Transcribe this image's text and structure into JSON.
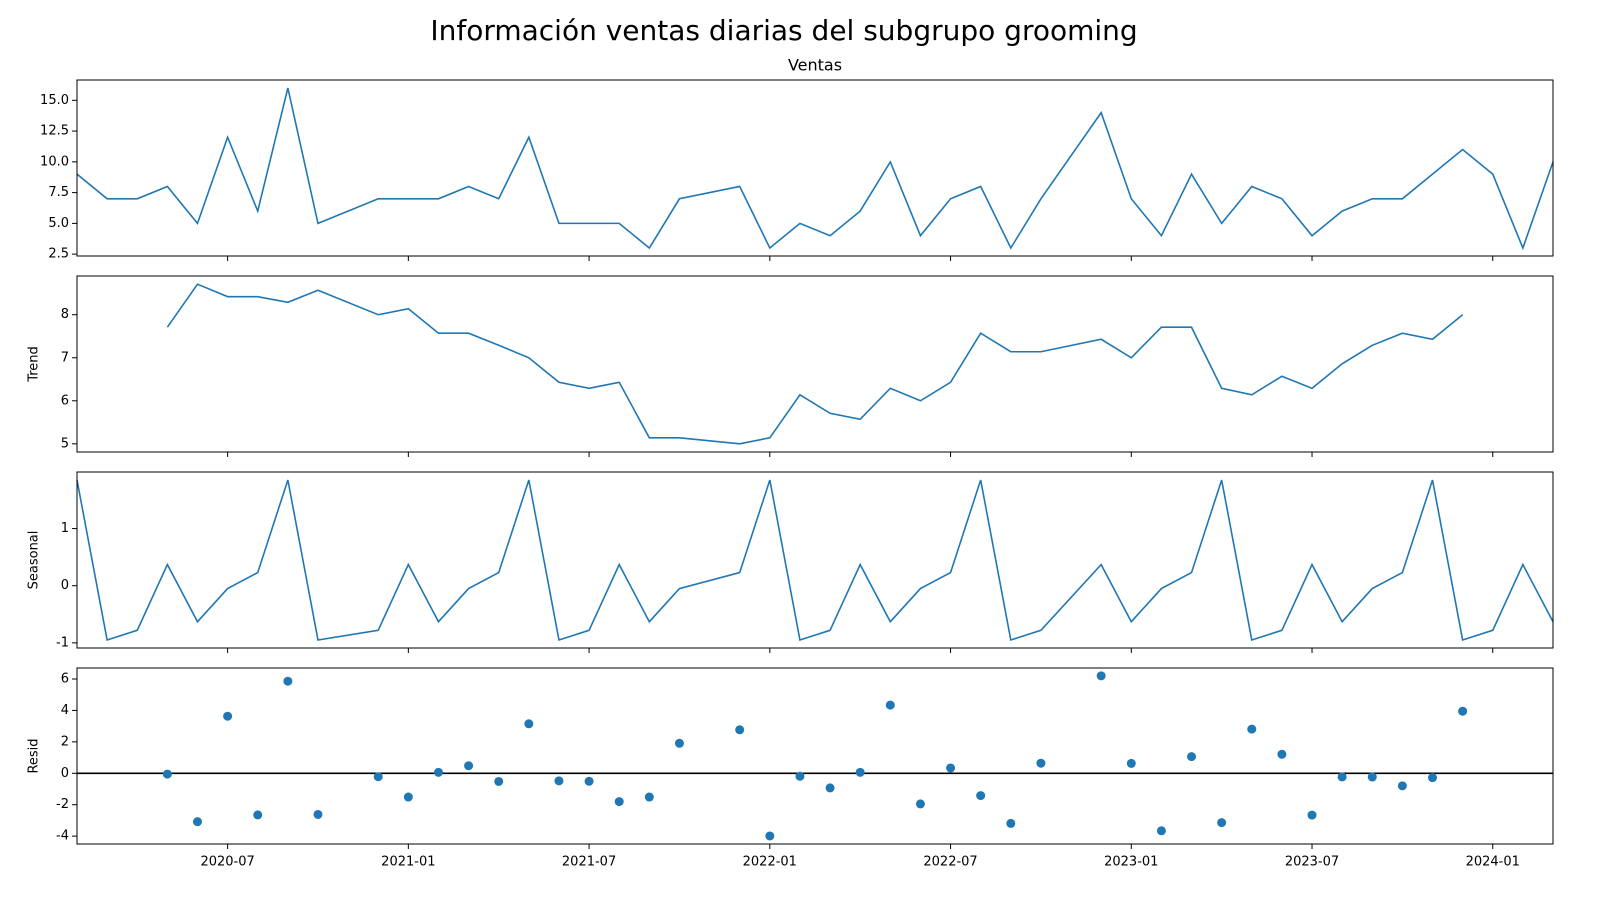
{
  "title": "Información ventas diarias del subgrupo grooming",
  "chart_data": [
    {
      "type": "line",
      "title": "Ventas",
      "color": "#1f77b4",
      "x": [
        "2020-02",
        "2020-03",
        "2020-04",
        "2020-05",
        "2020-06",
        "2020-07",
        "2020-08",
        "2020-09",
        "2020-10",
        "2020-12",
        "2021-01",
        "2021-02",
        "2021-03",
        "2021-04",
        "2021-05",
        "2021-06",
        "2021-07",
        "2021-08",
        "2021-09",
        "2021-10",
        "2021-12",
        "2022-01",
        "2022-02",
        "2022-03",
        "2022-04",
        "2022-05",
        "2022-06",
        "2022-07",
        "2022-08",
        "2022-09",
        "2022-10",
        "2022-12",
        "2023-01",
        "2023-02",
        "2023-03",
        "2023-04",
        "2023-05",
        "2023-06",
        "2023-07",
        "2023-08",
        "2023-09",
        "2023-10",
        "2023-11",
        "2023-12",
        "2024-01",
        "2024-02",
        "2024-03"
      ],
      "values": [
        9,
        7,
        7,
        8,
        5,
        12,
        6,
        16,
        5,
        7,
        7,
        7,
        8,
        7,
        12,
        5,
        5,
        5,
        3,
        7,
        8,
        3,
        5,
        4,
        6,
        10,
        4,
        7,
        8,
        3,
        7,
        14,
        7,
        4,
        9,
        5,
        8,
        7,
        4,
        6,
        7,
        7,
        9,
        11,
        9,
        3,
        10
      ],
      "xlim": [
        "2020-02",
        "2024-03"
      ],
      "xticks": [
        "2020-07",
        "2021-01",
        "2021-07",
        "2022-01",
        "2022-07",
        "2023-01",
        "2023-07",
        "2024-01"
      ],
      "ylim": [
        2.35,
        16.65
      ],
      "yticks": [
        2.5,
        {
          "value": 5,
          "label": "5.0"
        },
        7.5,
        {
          "value": 10,
          "label": "10.0"
        },
        12.5,
        {
          "value": 15,
          "label": "15.0"
        }
      ]
    },
    {
      "type": "line",
      "ylabel": "Trend",
      "color": "#1f77b4",
      "x": [
        "2020-02",
        "2020-03",
        "2020-04",
        "2020-05",
        "2020-06",
        "2020-07",
        "2020-08",
        "2020-09",
        "2020-10",
        "2020-12",
        "2021-01",
        "2021-02",
        "2021-03",
        "2021-04",
        "2021-05",
        "2021-06",
        "2021-07",
        "2021-08",
        "2021-09",
        "2021-10",
        "2021-12",
        "2022-01",
        "2022-02",
        "2022-03",
        "2022-04",
        "2022-05",
        "2022-06",
        "2022-07",
        "2022-08",
        "2022-09",
        "2022-10",
        "2022-12",
        "2023-01",
        "2023-02",
        "2023-03",
        "2023-04",
        "2023-05",
        "2023-06",
        "2023-07",
        "2023-08",
        "2023-09",
        "2023-10",
        "2023-11",
        "2023-12",
        "2024-01",
        "2024-02",
        "2024-03"
      ],
      "values": [
        null,
        null,
        null,
        7.71,
        8.71,
        8.42,
        8.42,
        8.29,
        8.57,
        8.0,
        8.14,
        7.57,
        7.57,
        7.29,
        7.0,
        6.43,
        6.29,
        6.43,
        5.14,
        5.14,
        5.0,
        5.14,
        6.14,
        5.71,
        5.57,
        6.29,
        6.0,
        6.43,
        7.57,
        7.14,
        7.14,
        7.43,
        7.0,
        7.71,
        7.71,
        6.29,
        6.14,
        6.57,
        6.29,
        6.86,
        7.29,
        7.57,
        7.43,
        8.0,
        null,
        null,
        null
      ],
      "xlim": [
        "2020-02",
        "2024-03"
      ],
      "xticks": [
        "2020-07",
        "2021-01",
        "2021-07",
        "2022-01",
        "2022-07",
        "2023-01",
        "2023-07",
        "2024-01"
      ],
      "ylim": [
        4.81,
        8.9
      ],
      "yticks": [
        5,
        6,
        7,
        8
      ]
    },
    {
      "type": "line",
      "ylabel": "Seasonal",
      "color": "#1f77b4",
      "x": [
        "2020-02",
        "2020-03",
        "2020-04",
        "2020-05",
        "2020-06",
        "2020-07",
        "2020-08",
        "2020-09",
        "2020-10",
        "2020-12",
        "2021-01",
        "2021-02",
        "2021-03",
        "2021-04",
        "2021-05",
        "2021-06",
        "2021-07",
        "2021-08",
        "2021-09",
        "2021-10",
        "2021-12",
        "2022-01",
        "2022-02",
        "2022-03",
        "2022-04",
        "2022-05",
        "2022-06",
        "2022-07",
        "2022-08",
        "2022-09",
        "2022-10",
        "2022-12",
        "2023-01",
        "2023-02",
        "2023-03",
        "2023-04",
        "2023-05",
        "2023-06",
        "2023-07",
        "2023-08",
        "2023-09",
        "2023-10",
        "2023-11",
        "2023-12",
        "2024-01",
        "2024-02",
        "2024-03"
      ],
      "values": [
        1.85,
        -0.95,
        -0.78,
        0.37,
        -0.63,
        -0.05,
        0.23,
        1.85,
        -0.95,
        -0.78,
        0.37,
        -0.63,
        -0.05,
        0.23,
        1.85,
        -0.95,
        -0.78,
        0.37,
        -0.63,
        -0.05,
        0.23,
        1.85,
        -0.95,
        -0.78,
        0.37,
        -0.63,
        -0.05,
        0.23,
        1.85,
        -0.95,
        -0.78,
        0.37,
        -0.63,
        -0.05,
        0.23,
        1.85,
        -0.95,
        -0.78,
        0.37,
        -0.63,
        -0.05,
        0.23,
        1.85,
        -0.95,
        -0.78,
        0.37,
        -0.63
      ],
      "xlim": [
        "2020-02",
        "2024-03"
      ],
      "xticks": [
        "2020-07",
        "2021-01",
        "2021-07",
        "2022-01",
        "2022-07",
        "2023-01",
        "2023-07",
        "2024-01"
      ],
      "ylim": [
        -1.09,
        1.99
      ],
      "yticks": [
        -1,
        0,
        1
      ]
    },
    {
      "type": "scatter",
      "ylabel": "Resid",
      "color": "#1f77b4",
      "baseline": 0,
      "x": [
        "2020-05",
        "2020-06",
        "2020-07",
        "2020-08",
        "2020-09",
        "2020-10",
        "2020-12",
        "2021-01",
        "2021-02",
        "2021-03",
        "2021-04",
        "2021-05",
        "2021-06",
        "2021-07",
        "2021-08",
        "2021-09",
        "2021-10",
        "2021-12",
        "2022-01",
        "2022-02",
        "2022-03",
        "2022-04",
        "2022-05",
        "2022-06",
        "2022-07",
        "2022-08",
        "2022-09",
        "2022-10",
        "2022-12",
        "2023-01",
        "2023-02",
        "2023-03",
        "2023-04",
        "2023-05",
        "2023-06",
        "2023-07",
        "2023-08",
        "2023-09",
        "2023-10",
        "2023-11",
        "2023-12"
      ],
      "values": [
        -0.05,
        -3.08,
        3.63,
        -2.65,
        5.86,
        -2.62,
        -0.22,
        -1.51,
        0.06,
        0.48,
        -0.52,
        3.15,
        -0.48,
        -0.51,
        -1.8,
        -1.51,
        1.91,
        2.77,
        -3.99,
        -0.19,
        -0.93,
        0.06,
        4.34,
        -1.95,
        0.34,
        -1.42,
        -3.19,
        0.64,
        6.2,
        0.63,
        -3.66,
        1.06,
        -3.14,
        2.81,
        1.21,
        -2.66,
        -0.23,
        -0.24,
        -0.8,
        -0.28,
        3.95
      ],
      "xlim": [
        "2020-02",
        "2024-03"
      ],
      "xticks": [
        "2020-07",
        "2021-01",
        "2021-07",
        "2022-01",
        "2022-07",
        "2023-01",
        "2023-07",
        "2024-01"
      ],
      "ylim": [
        -4.5,
        6.7
      ],
      "yticks": [
        -4,
        -2,
        0,
        2,
        4,
        6
      ]
    }
  ]
}
